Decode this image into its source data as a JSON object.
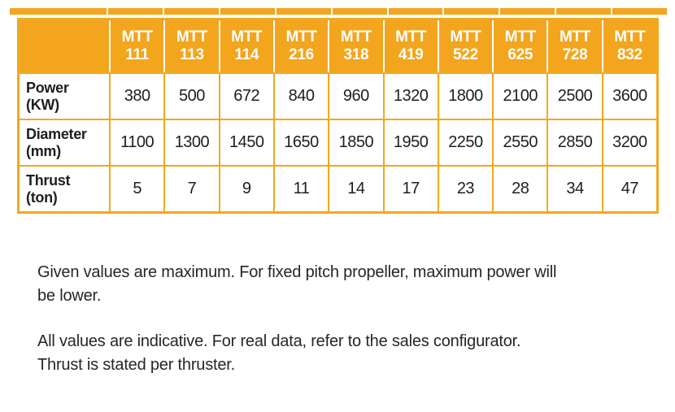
{
  "colors": {
    "orange": "#F2A51D",
    "grid_orange": "#F1A91E",
    "header_text": "#FFFFFF",
    "body_text": "#1E1E1E"
  },
  "table": {
    "columns": [
      {
        "line1": "MTT",
        "line2": "111"
      },
      {
        "line1": "MTT",
        "line2": "113"
      },
      {
        "line1": "MTT",
        "line2": "114"
      },
      {
        "line1": "MTT",
        "line2": "216"
      },
      {
        "line1": "MTT",
        "line2": "318"
      },
      {
        "line1": "MTT",
        "line2": "419"
      },
      {
        "line1": "MTT",
        "line2": "522"
      },
      {
        "line1": "MTT",
        "line2": "625"
      },
      {
        "line1": "MTT",
        "line2": "728"
      },
      {
        "line1": "MTT",
        "line2": "832"
      }
    ],
    "rows": [
      {
        "label_line1": "Power",
        "label_line2": "(KW)",
        "values": [
          "380",
          "500",
          "672",
          "840",
          "960",
          "1320",
          "1800",
          "2100",
          "2500",
          "3600"
        ]
      },
      {
        "label_line1": "Diameter",
        "label_line2": "(mm)",
        "values": [
          "1100",
          "1300",
          "1450",
          "1650",
          "1850",
          "1950",
          "2250",
          "2550",
          "2850",
          "3200"
        ]
      },
      {
        "label_line1": "Thrust",
        "label_line2": "(ton)",
        "values": [
          "5",
          "7",
          "9",
          "11",
          "14",
          "17",
          "23",
          "28",
          "34",
          "47"
        ]
      }
    ]
  },
  "notes": [
    {
      "lines": [
        "Given values are maximum. For fixed pitch propeller, maximum power will",
        "be lower."
      ]
    },
    {
      "lines": [
        "All values are indicative. For real data, refer to the sales configurator.",
        "Thrust is stated per thruster."
      ]
    }
  ]
}
